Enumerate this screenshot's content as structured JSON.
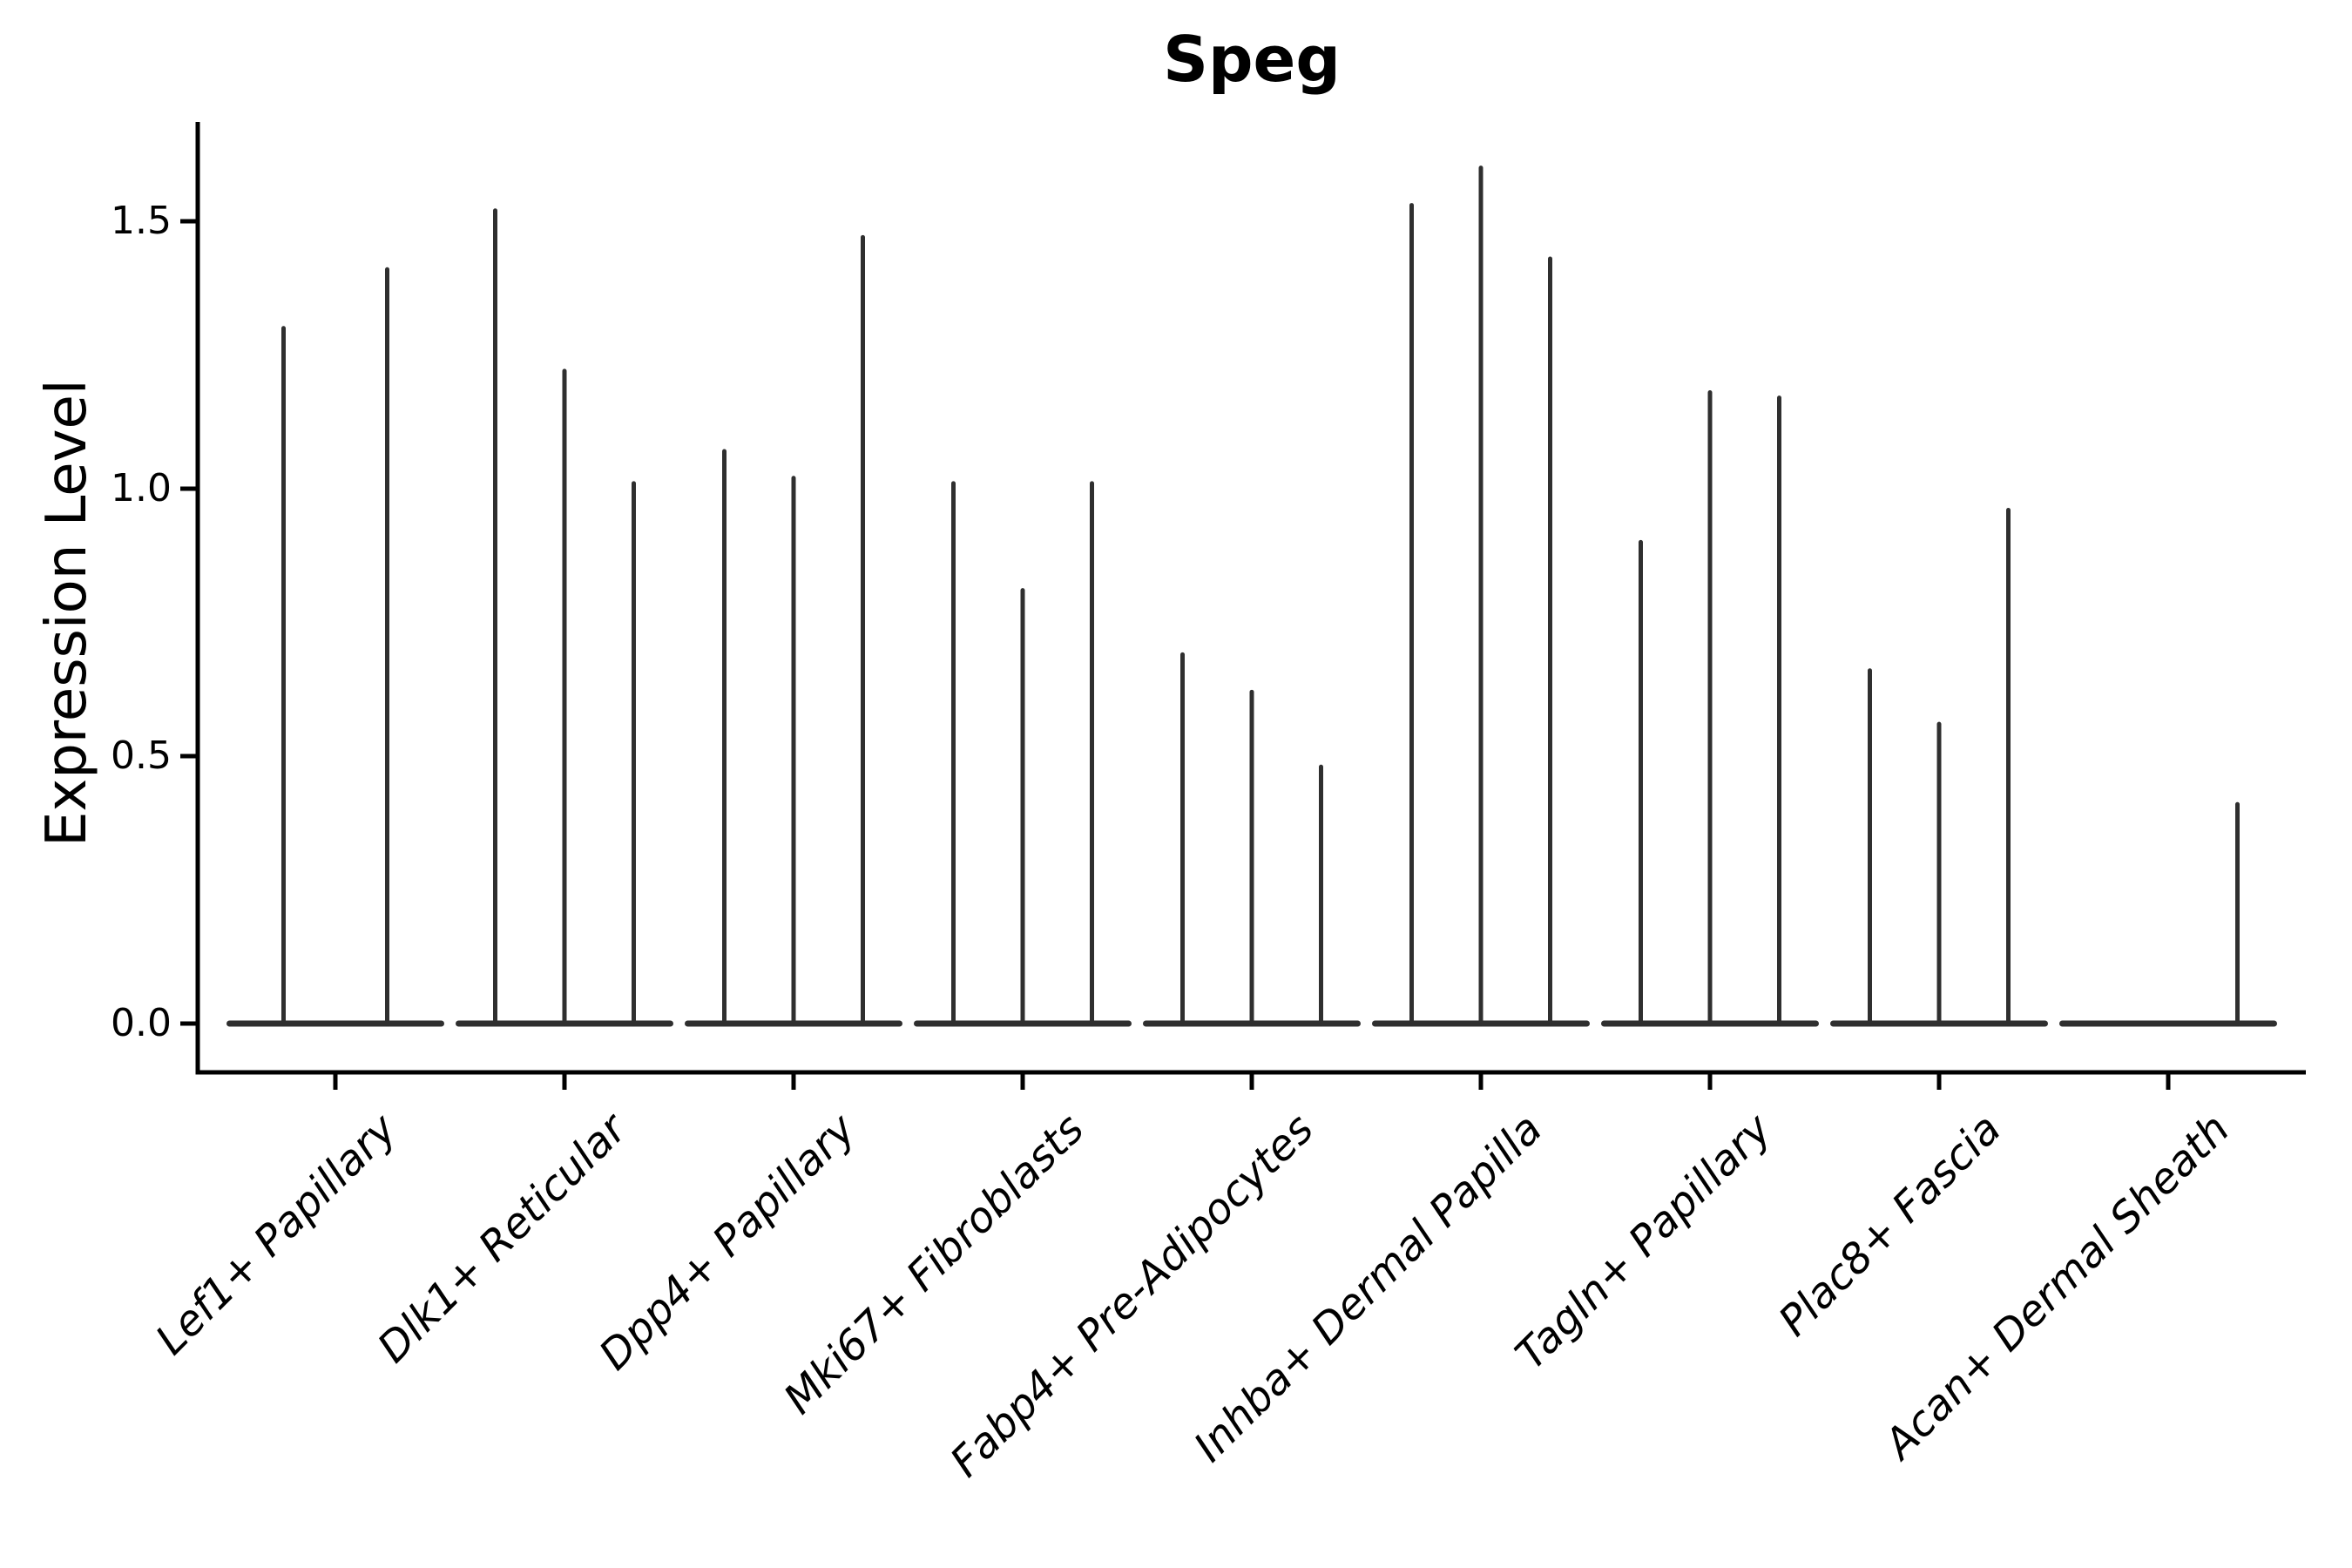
{
  "title": "Speg",
  "y_axis": {
    "label": "Expression Level",
    "ticks": [
      {
        "label": "0.0",
        "value": 0.0
      },
      {
        "label": "0.5",
        "value": 0.5
      },
      {
        "label": "1.0",
        "value": 1.0
      },
      {
        "label": "1.5",
        "value": 1.5
      }
    ]
  },
  "colors": {
    "violin_line": "#2f2f2f",
    "axis": "#000000",
    "background": "#ffffff"
  },
  "chart_data": {
    "type": "violin",
    "title": "Speg",
    "xlabel": "",
    "ylabel": "Expression Level",
    "ylim": [
      0,
      1.69
    ],
    "yticks": [
      0.0,
      0.5,
      1.0,
      1.5
    ],
    "grid": false,
    "legend": "none",
    "categories": [
      "Lef1+ Papillary",
      "Dlk1+ Reticular",
      "Dpp4+ Papillary",
      "Mki67+ Fibroblasts",
      "Fabp4+ Pre-Adipocytes",
      "Inhba+ Dermal Papilla",
      "Tagln+ Papillary",
      "Plac8+ Fascia",
      "Acan+ Dermal Sheath"
    ],
    "series": [
      {
        "category": "Lef1+ Papillary",
        "violin_maxima": [
          1.3,
          1.41
        ]
      },
      {
        "category": "Dlk1+ Reticular",
        "violin_maxima": [
          1.52,
          1.22,
          1.01
        ]
      },
      {
        "category": "Dpp4+ Papillary",
        "violin_maxima": [
          1.07,
          1.02,
          1.47
        ]
      },
      {
        "category": "Mki67+ Fibroblasts",
        "violin_maxima": [
          1.01,
          0.81,
          1.01
        ]
      },
      {
        "category": "Fabp4+ Pre-Adipocytes",
        "violin_maxima": [
          0.69,
          0.62,
          0.48
        ]
      },
      {
        "category": "Inhba+ Dermal Papilla",
        "violin_maxima": [
          1.53,
          1.6,
          1.43
        ]
      },
      {
        "category": "Tagln+ Papillary",
        "violin_maxima": [
          0.9,
          1.18,
          1.17
        ]
      },
      {
        "category": "Plac8+ Fascia",
        "violin_maxima": [
          0.66,
          0.56,
          0.96
        ]
      },
      {
        "category": "Acan+ Dermal Sheath",
        "violin_maxima": [
          0.0,
          0.0,
          0.41
        ]
      }
    ]
  }
}
